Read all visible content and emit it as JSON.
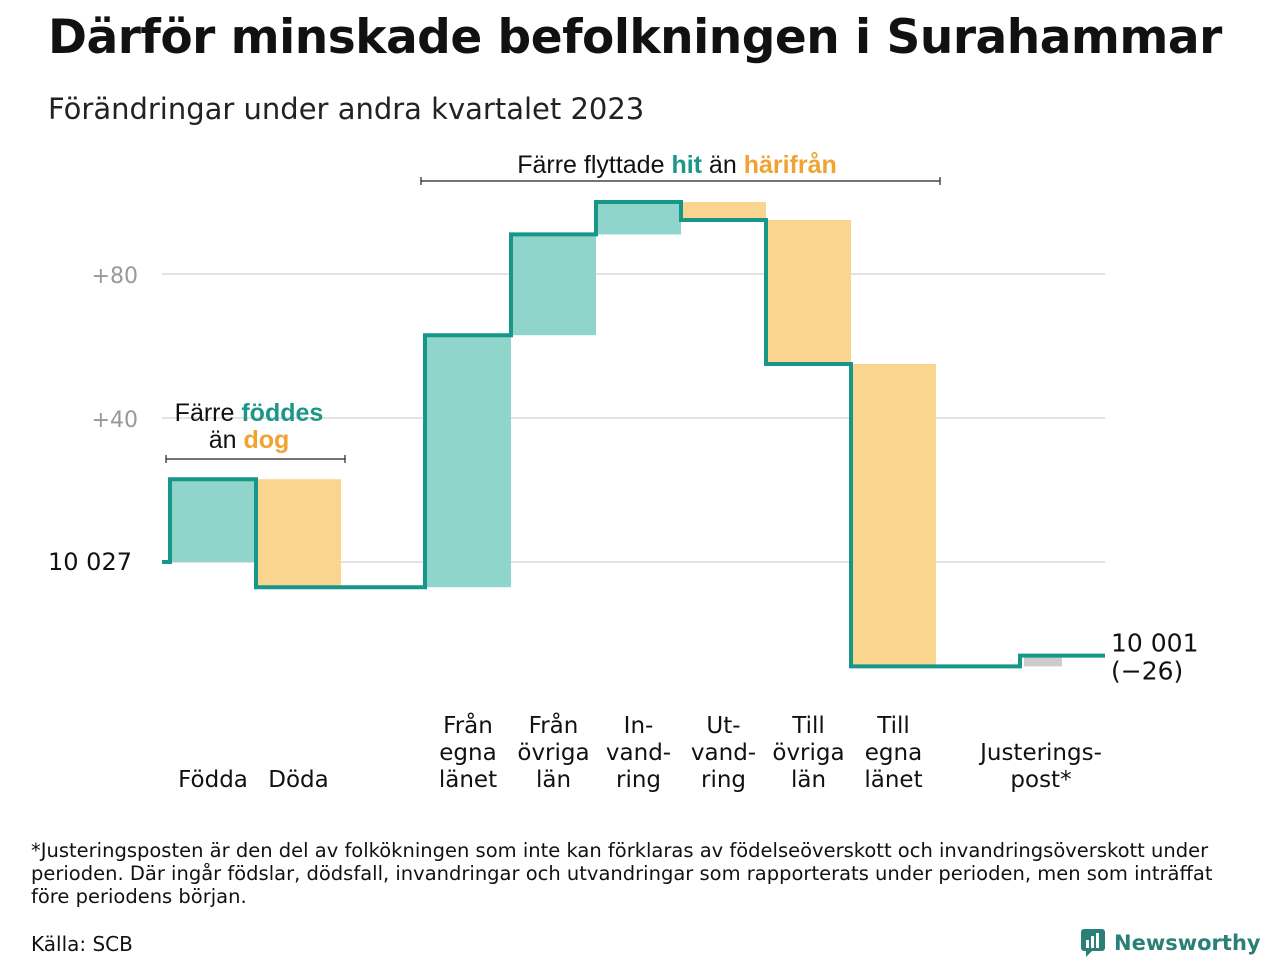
{
  "header": {
    "title": "Därför minskade befolkningen i Surahammar",
    "subtitle": "Förändringar under andra kvartalet 2023"
  },
  "footer": {
    "footnote": "*Justeringsposten är den del av folkökningen som inte kan förklaras av födelseöverskott och invandringsöverskott under perioden. Där ingår födslar, dödsfall, invandringar och utvandringar som rapporterats under perioden, men som inträffat före periodens början.",
    "source": "Källa: SCB",
    "brand": "Newsworthy",
    "brand_icon": "newsworthy-logo-icon"
  },
  "chart_data": {
    "type": "waterfall",
    "start_value": 10027,
    "start_label": "10  027",
    "end_label_lines": [
      "10 001",
      "(−26)"
    ],
    "y_ticks": [
      {
        "value": 40,
        "label": "+40"
      },
      {
        "value": 80,
        "label": "+80"
      }
    ],
    "grid": true,
    "steps": [
      {
        "label_lines": [
          "Födda"
        ],
        "change": 23,
        "kind": "in"
      },
      {
        "label_lines": [
          "Döda"
        ],
        "change": -30,
        "kind": "out"
      },
      {
        "label_lines": [
          "Från",
          "egna",
          "länet"
        ],
        "change": 70,
        "kind": "in"
      },
      {
        "label_lines": [
          "Från",
          "övriga",
          "län"
        ],
        "change": 28,
        "kind": "in"
      },
      {
        "label_lines": [
          "In-",
          "vand-",
          "ring"
        ],
        "change": 9,
        "kind": "in"
      },
      {
        "label_lines": [
          "Ut-",
          "vand-",
          "ring"
        ],
        "change": -5,
        "kind": "out"
      },
      {
        "label_lines": [
          "Till",
          "övriga",
          "län"
        ],
        "change": -40,
        "kind": "out"
      },
      {
        "label_lines": [
          "Till",
          "egna",
          "länet"
        ],
        "change": -84,
        "kind": "out"
      },
      {
        "label_lines": [
          "Justerings-",
          "post*"
        ],
        "change": 3,
        "kind": "adjustment"
      }
    ],
    "annotations": [
      {
        "id": "births-deaths",
        "steps": [
          0,
          1
        ],
        "parts": [
          [
            {
              "text": "Färre ",
              "color": "dark"
            },
            {
              "text": "föddes",
              "color": "in"
            }
          ],
          [
            {
              "text": "än ",
              "color": "dark"
            },
            {
              "text": "dog",
              "color": "out"
            }
          ]
        ]
      },
      {
        "id": "migration",
        "steps": [
          2,
          7
        ],
        "parts": [
          [
            {
              "text": "Färre flyttade ",
              "color": "dark"
            },
            {
              "text": "hit",
              "color": "in"
            },
            {
              "text": " än ",
              "color": "dark"
            },
            {
              "text": "härifrån",
              "color": "out"
            }
          ]
        ]
      }
    ],
    "colors": {
      "in": "#8fd5cb",
      "in_text": "#1b9688",
      "out": "#fad58f",
      "out_text": "#f0a330",
      "adjustment": "#cccccc",
      "line": "#17968a",
      "grid": "#e3e3e3",
      "tick_text": "#999999",
      "dark": "#111111"
    }
  }
}
